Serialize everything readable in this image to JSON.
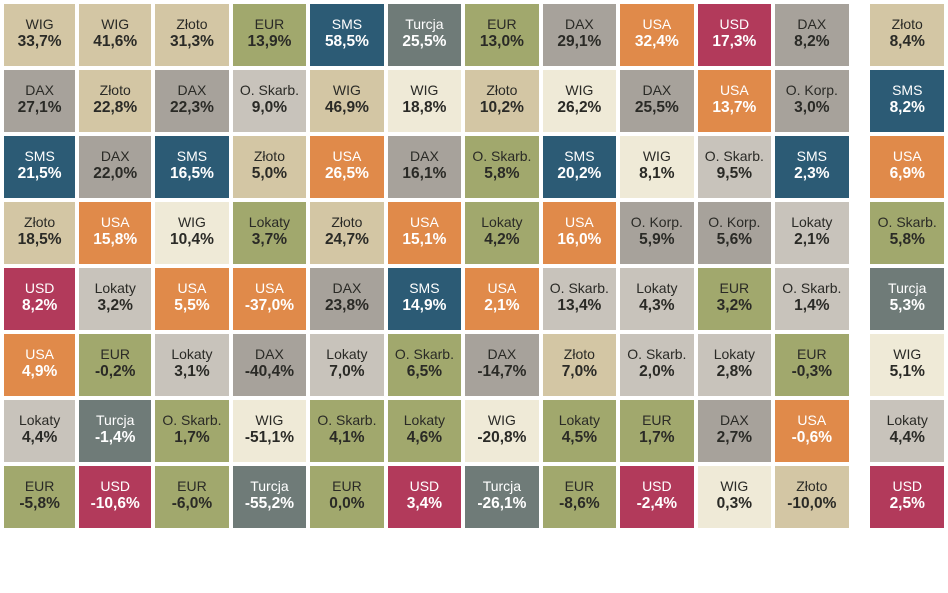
{
  "table": {
    "cell_font_label": 14,
    "cell_font_value": 15.5,
    "grid_gap_color": "#ffffff",
    "colors": {
      "beige": {
        "bg": "#d3c6a4",
        "text": "dk"
      },
      "grey": {
        "bg": "#a7a29b",
        "text": "dk"
      },
      "olive": {
        "bg": "#a1a86d",
        "text": "dk"
      },
      "teal": {
        "bg": "#2c5b75",
        "text": "lt"
      },
      "slate": {
        "bg": "#6f7b78",
        "text": "lt"
      },
      "orange": {
        "bg": "#e08a4a",
        "text": "lt"
      },
      "crimson": {
        "bg": "#b23a5b",
        "text": "lt"
      },
      "cream": {
        "bg": "#efead7",
        "text": "dk"
      },
      "lightgrey": {
        "bg": "#c8c3bb",
        "text": "dk"
      }
    },
    "rows": [
      [
        {
          "l": "WIG",
          "v": "33,7%",
          "c": "beige"
        },
        {
          "l": "WIG",
          "v": "41,6%",
          "c": "beige"
        },
        {
          "l": "Złoto",
          "v": "31,3%",
          "c": "beige"
        },
        {
          "l": "EUR",
          "v": "13,9%",
          "c": "olive"
        },
        {
          "l": "SMS",
          "v": "58,5%",
          "c": "teal"
        },
        {
          "l": "Turcja",
          "v": "25,5%",
          "c": "slate"
        },
        {
          "l": "EUR",
          "v": "13,0%",
          "c": "olive"
        },
        {
          "l": "DAX",
          "v": "29,1%",
          "c": "grey"
        },
        {
          "l": "USA",
          "v": "32,4%",
          "c": "orange"
        },
        {
          "l": "USD",
          "v": "17,3%",
          "c": "crimson"
        },
        {
          "l": "DAX",
          "v": "8,2%",
          "c": "grey"
        },
        null,
        {
          "l": "Złoto",
          "v": "8,4%",
          "c": "beige"
        }
      ],
      [
        {
          "l": "DAX",
          "v": "27,1%",
          "c": "grey"
        },
        {
          "l": "Złoto",
          "v": "22,8%",
          "c": "beige"
        },
        {
          "l": "DAX",
          "v": "22,3%",
          "c": "grey"
        },
        {
          "l": "O. Skarb.",
          "v": "9,0%",
          "c": "lightgrey"
        },
        {
          "l": "WIG",
          "v": "46,9%",
          "c": "beige"
        },
        {
          "l": "WIG",
          "v": "18,8%",
          "c": "cream"
        },
        {
          "l": "Złoto",
          "v": "10,2%",
          "c": "beige"
        },
        {
          "l": "WIG",
          "v": "26,2%",
          "c": "cream"
        },
        {
          "l": "DAX",
          "v": "25,5%",
          "c": "grey"
        },
        {
          "l": "USA",
          "v": "13,7%",
          "c": "orange"
        },
        {
          "l": "O. Korp.",
          "v": "3,0%",
          "c": "grey"
        },
        null,
        {
          "l": "SMS",
          "v": "8,2%",
          "c": "teal"
        }
      ],
      [
        {
          "l": "SMS",
          "v": "21,5%",
          "c": "teal"
        },
        {
          "l": "DAX",
          "v": "22,0%",
          "c": "grey"
        },
        {
          "l": "SMS",
          "v": "16,5%",
          "c": "teal"
        },
        {
          "l": "Złoto",
          "v": "5,0%",
          "c": "beige"
        },
        {
          "l": "USA",
          "v": "26,5%",
          "c": "orange"
        },
        {
          "l": "DAX",
          "v": "16,1%",
          "c": "grey"
        },
        {
          "l": "O. Skarb.",
          "v": "5,8%",
          "c": "olive"
        },
        {
          "l": "SMS",
          "v": "20,2%",
          "c": "teal"
        },
        {
          "l": "WIG",
          "v": "8,1%",
          "c": "cream"
        },
        {
          "l": "O. Skarb.",
          "v": "9,5%",
          "c": "lightgrey"
        },
        {
          "l": "SMS",
          "v": "2,3%",
          "c": "teal"
        },
        null,
        {
          "l": "USA",
          "v": "6,9%",
          "c": "orange"
        }
      ],
      [
        {
          "l": "Złoto",
          "v": "18,5%",
          "c": "beige"
        },
        {
          "l": "USA",
          "v": "15,8%",
          "c": "orange"
        },
        {
          "l": "WIG",
          "v": "10,4%",
          "c": "cream"
        },
        {
          "l": "Lokaty",
          "v": "3,7%",
          "c": "olive"
        },
        {
          "l": "Złoto",
          "v": "24,7%",
          "c": "beige"
        },
        {
          "l": "USA",
          "v": "15,1%",
          "c": "orange"
        },
        {
          "l": "Lokaty",
          "v": "4,2%",
          "c": "olive"
        },
        {
          "l": "USA",
          "v": "16,0%",
          "c": "orange"
        },
        {
          "l": "O. Korp.",
          "v": "5,9%",
          "c": "grey"
        },
        {
          "l": "O. Korp.",
          "v": "5,6%",
          "c": "grey"
        },
        {
          "l": "Lokaty",
          "v": "2,1%",
          "c": "lightgrey"
        },
        null,
        {
          "l": "O. Skarb.",
          "v": "5,8%",
          "c": "olive"
        }
      ],
      [
        {
          "l": "USD",
          "v": "8,2%",
          "c": "crimson"
        },
        {
          "l": "Lokaty",
          "v": "3,2%",
          "c": "lightgrey"
        },
        {
          "l": "USA",
          "v": "5,5%",
          "c": "orange"
        },
        {
          "l": "USA",
          "v": "-37,0%",
          "c": "orange"
        },
        {
          "l": "DAX",
          "v": "23,8%",
          "c": "grey"
        },
        {
          "l": "SMS",
          "v": "14,9%",
          "c": "teal"
        },
        {
          "l": "USA",
          "v": "2,1%",
          "c": "orange"
        },
        {
          "l": "O. Skarb.",
          "v": "13,4%",
          "c": "lightgrey"
        },
        {
          "l": "Lokaty",
          "v": "4,3%",
          "c": "lightgrey"
        },
        {
          "l": "EUR",
          "v": "3,2%",
          "c": "olive"
        },
        {
          "l": "O. Skarb.",
          "v": "1,4%",
          "c": "lightgrey"
        },
        null,
        {
          "l": "Turcja",
          "v": "5,3%",
          "c": "slate"
        }
      ],
      [
        {
          "l": "USA",
          "v": "4,9%",
          "c": "orange"
        },
        {
          "l": "EUR",
          "v": "-0,2%",
          "c": "olive"
        },
        {
          "l": "Lokaty",
          "v": "3,1%",
          "c": "lightgrey"
        },
        {
          "l": "DAX",
          "v": "-40,4%",
          "c": "grey"
        },
        {
          "l": "Lokaty",
          "v": "7,0%",
          "c": "lightgrey"
        },
        {
          "l": "O. Skarb.",
          "v": "6,5%",
          "c": "olive"
        },
        {
          "l": "DAX",
          "v": "-14,7%",
          "c": "grey"
        },
        {
          "l": "Złoto",
          "v": "7,0%",
          "c": "beige"
        },
        {
          "l": "O. Skarb.",
          "v": "2,0%",
          "c": "lightgrey"
        },
        {
          "l": "Lokaty",
          "v": "2,8%",
          "c": "lightgrey"
        },
        {
          "l": "EUR",
          "v": "-0,3%",
          "c": "olive"
        },
        null,
        {
          "l": "WIG",
          "v": "5,1%",
          "c": "cream"
        }
      ],
      [
        {
          "l": "Lokaty",
          "v": "4,4%",
          "c": "lightgrey"
        },
        {
          "l": "Turcja",
          "v": "-1,4%",
          "c": "slate"
        },
        {
          "l": "O. Skarb.",
          "v": "1,7%",
          "c": "olive"
        },
        {
          "l": "WIG",
          "v": "-51,1%",
          "c": "cream"
        },
        {
          "l": "O. Skarb.",
          "v": "4,1%",
          "c": "olive"
        },
        {
          "l": "Lokaty",
          "v": "4,6%",
          "c": "olive"
        },
        {
          "l": "WIG",
          "v": "-20,8%",
          "c": "cream"
        },
        {
          "l": "Lokaty",
          "v": "4,5%",
          "c": "olive"
        },
        {
          "l": "EUR",
          "v": "1,7%",
          "c": "olive"
        },
        {
          "l": "DAX",
          "v": "2,7%",
          "c": "grey"
        },
        {
          "l": "USA",
          "v": "-0,6%",
          "c": "orange"
        },
        null,
        {
          "l": "Lokaty",
          "v": "4,4%",
          "c": "lightgrey"
        }
      ],
      [
        {
          "l": "EUR",
          "v": "-5,8%",
          "c": "olive"
        },
        {
          "l": "USD",
          "v": "-10,6%",
          "c": "crimson"
        },
        {
          "l": "EUR",
          "v": "-6,0%",
          "c": "olive"
        },
        {
          "l": "Turcja",
          "v": "-55,2%",
          "c": "slate"
        },
        {
          "l": "EUR",
          "v": "0,0%",
          "c": "olive"
        },
        {
          "l": "USD",
          "v": "3,4%",
          "c": "crimson"
        },
        {
          "l": "Turcja",
          "v": "-26,1%",
          "c": "slate"
        },
        {
          "l": "EUR",
          "v": "-8,6%",
          "c": "olive"
        },
        {
          "l": "USD",
          "v": "-2,4%",
          "c": "crimson"
        },
        {
          "l": "WIG",
          "v": "0,3%",
          "c": "cream"
        },
        {
          "l": "Złoto",
          "v": "-10,0%",
          "c": "beige"
        },
        null,
        {
          "l": "USD",
          "v": "2,5%",
          "c": "crimson"
        }
      ]
    ]
  }
}
